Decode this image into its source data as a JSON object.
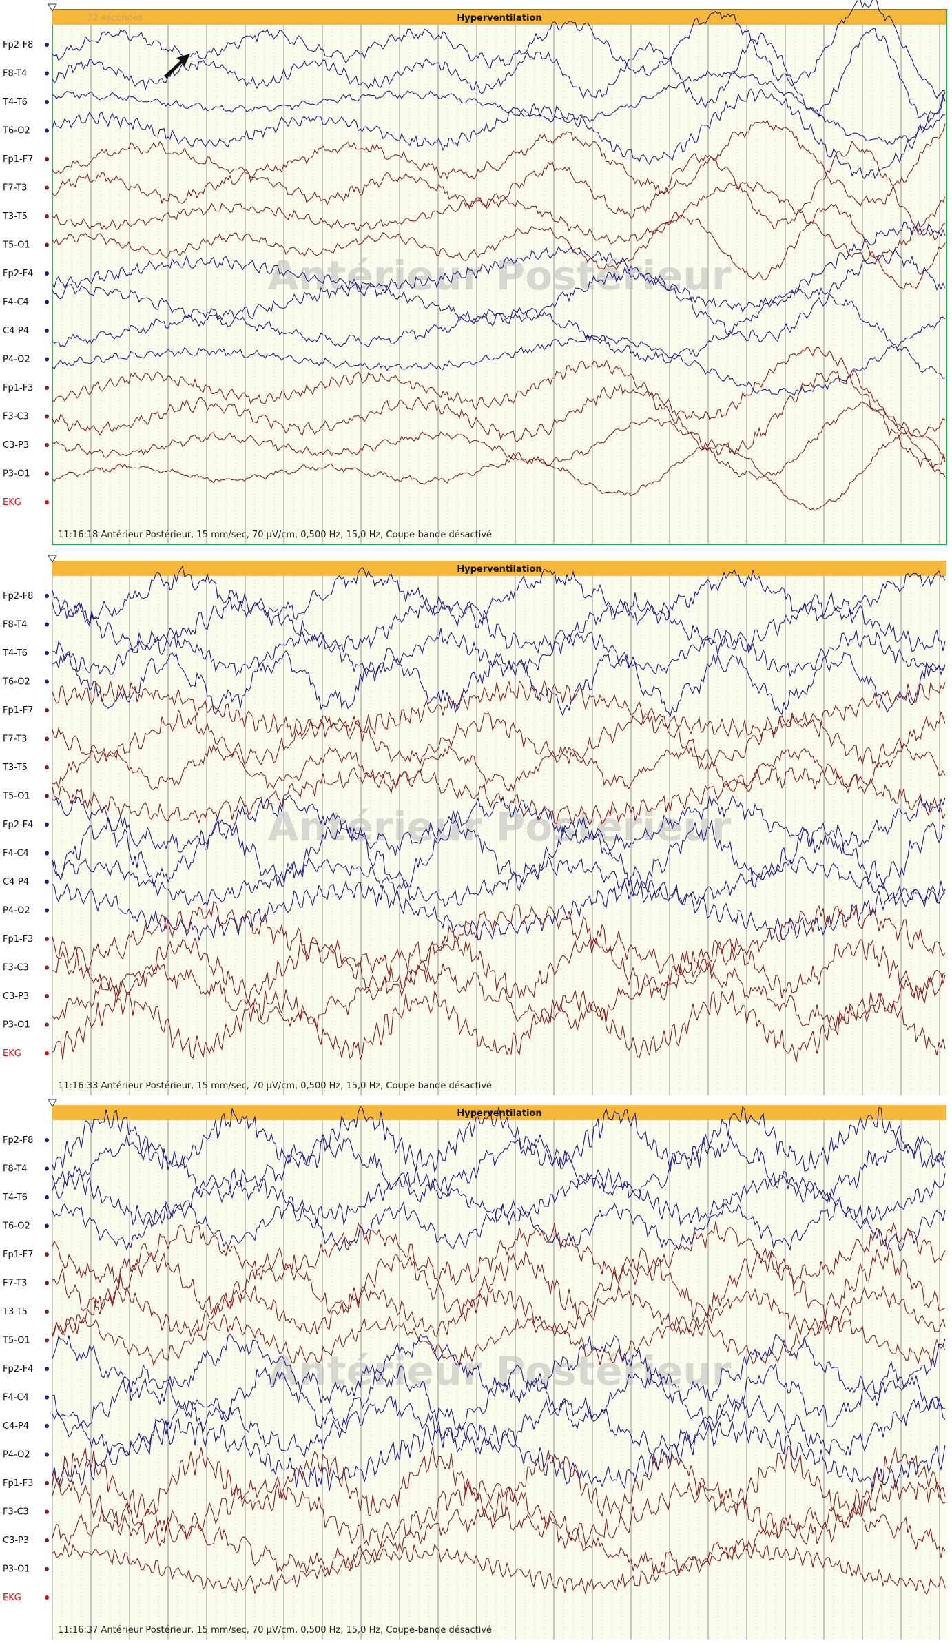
{
  "channels": [
    "Fp2-F8",
    "F8-T4",
    "T4-T6",
    "T6-O2",
    "Fp1-F7",
    "F7-T3",
    "T3-T5",
    "T5-O1",
    "Fp2-F4",
    "F4-C4",
    "C4-P4",
    "P4-O2",
    "Fp1-F3",
    "F3-C3",
    "C3-P3",
    "P3-O1",
    "EKG"
  ],
  "watermark": "Antérieur Postérieur",
  "panels": [
    {
      "time_label": "72 secondes",
      "event": "Hyperventilation",
      "footer": "11:16:18 Antérieur Postérieur, 15 mm/sec, 70 µV/cm, 0,500 Hz, 15,0 Hz, Coupe-bande désactivé"
    },
    {
      "event": "Hyperventilation",
      "footer": "11:16:33 Antérieur Postérieur, 15 mm/sec, 70 µV/cm, 0,500 Hz, 15,0 Hz, Coupe-bande désactivé"
    },
    {
      "event": "Hyperventilation",
      "footer": "11:16:37 Antérieur Postérieur, 15 mm/sec, 70 µV/cm, 0,500 Hz, 15,0 Hz, Coupe-bande désactivé"
    }
  ]
}
